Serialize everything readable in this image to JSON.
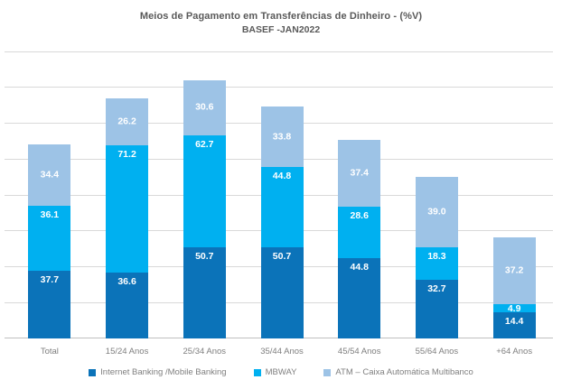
{
  "title": "Meios de Pagamento em Transferências de Dinheiro - (%V)",
  "subtitle": "BASEF -JAN2022",
  "colors": {
    "internet_banking": "#0b73b9",
    "mbway": "#00b0f0",
    "atm": "#9dc3e6",
    "gridline": "#d9d9d9",
    "axis_line": "#bfbfbf",
    "title_text": "#595959",
    "axis_text": "#7f7f7f",
    "value_label_text": "#ffffff"
  },
  "chart_data": {
    "type": "bar",
    "stacked": true,
    "title": "Meios de Pagamento em Transferências de Dinheiro - (%V)",
    "subtitle": "BASEF -JAN2022",
    "categories": [
      "Total",
      "15/24 Anos",
      "25/34 Anos",
      "35/44 Anos",
      "45/54 Anos",
      "55/64 Anos",
      "+64 Anos"
    ],
    "series": [
      {
        "name": "Internet Banking /Mobile Banking",
        "color": "#0b73b9",
        "label_position": "inside_end",
        "values": [
          37.7,
          36.6,
          50.7,
          50.7,
          44.8,
          32.7,
          14.4
        ]
      },
      {
        "name": "MBWAY",
        "color": "#00b0f0",
        "label_position": "inside_end",
        "values": [
          36.1,
          71.2,
          62.7,
          44.8,
          28.6,
          18.3,
          4.9
        ]
      },
      {
        "name": "ATM – Caixa Automática Multibanco",
        "color": "#9dc3e6",
        "label_position": "center",
        "values": [
          34.4,
          26.2,
          30.6,
          33.8,
          37.4,
          39.0,
          37.2
        ]
      }
    ],
    "xlabel": "",
    "ylabel": "",
    "ylim": [
      0,
      160
    ],
    "gridline_step": 20,
    "grid": true,
    "y_axis_labels_visible": false,
    "value_labels_decimals": 1,
    "legend_position": "bottom"
  }
}
